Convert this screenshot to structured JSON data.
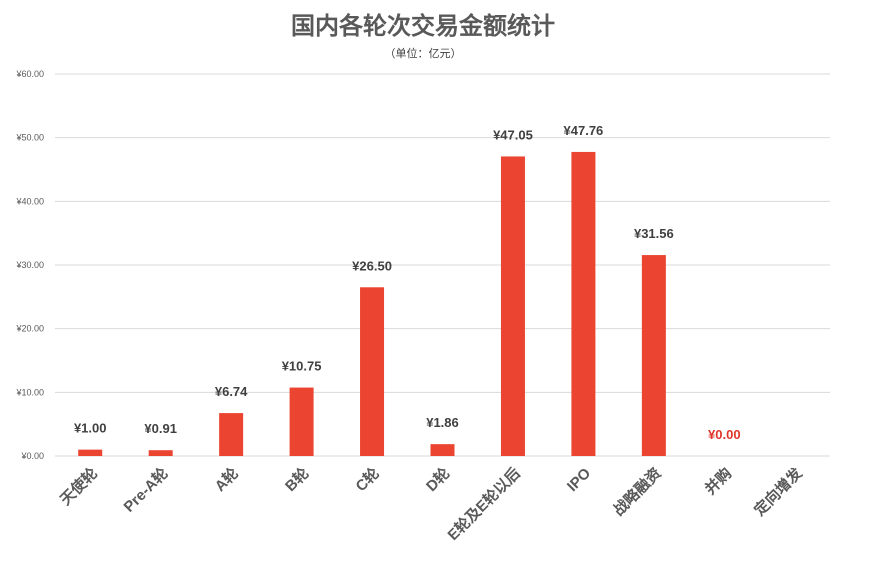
{
  "chart_data": {
    "type": "bar",
    "title": "国内各轮次交易金额统计",
    "subtitle": "（单位：亿元）",
    "categories": [
      "天使轮",
      "Pre-A轮",
      "A轮",
      "B轮",
      "C轮",
      "D轮",
      "E轮及E轮以后",
      "IPO",
      "战略融资",
      "并购",
      "定向增发"
    ],
    "values": [
      1.0,
      0.91,
      6.74,
      10.75,
      26.5,
      1.86,
      47.05,
      47.76,
      31.56,
      0.0,
      null
    ],
    "data_labels": [
      "¥1.00",
      "¥0.91",
      "¥6.74",
      "¥10.75",
      "¥26.50",
      "¥1.86",
      "¥47.05",
      "¥47.76",
      "¥31.56",
      "¥0.00",
      ""
    ],
    "y_ticks": [
      "¥0.00",
      "¥10.00",
      "¥20.00",
      "¥30.00",
      "¥40.00",
      "¥50.00",
      "¥60.00"
    ],
    "ylim": [
      0,
      60
    ],
    "grid": true,
    "legend": "none",
    "colors": {
      "bar": "#eb4430",
      "zero_label": "#e0362a",
      "grid": "#d9d9d9",
      "text": "#595959"
    }
  }
}
